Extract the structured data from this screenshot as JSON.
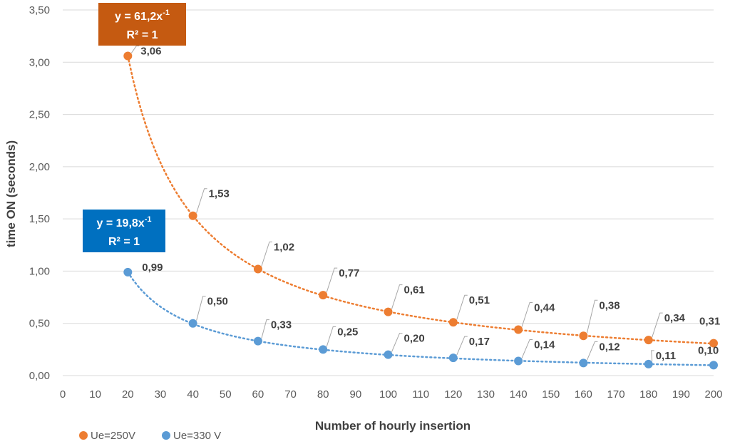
{
  "chart_data": {
    "type": "scatter",
    "xlabel": "Number of hourly insertion",
    "ylabel": "time ON (seconds)",
    "xlim": [
      0,
      200
    ],
    "ylim": [
      0,
      3.5
    ],
    "x_ticks": [
      "0",
      "10",
      "20",
      "30",
      "40",
      "50",
      "60",
      "70",
      "80",
      "90",
      "100",
      "110",
      "120",
      "130",
      "140",
      "150",
      "160",
      "170",
      "180",
      "190",
      "200"
    ],
    "y_ticks": [
      "0,00",
      "0,50",
      "1,00",
      "1,50",
      "2,00",
      "2,50",
      "3,00",
      "3,50"
    ],
    "grid": "horizontal",
    "legend_position": "bottom-left",
    "series": [
      {
        "name": "Ue=250V",
        "color": "#ED7D31",
        "x": [
          20,
          40,
          60,
          80,
          100,
          120,
          140,
          160,
          180,
          200
        ],
        "y": [
          3.06,
          1.53,
          1.02,
          0.77,
          0.61,
          0.51,
          0.44,
          0.38,
          0.34,
          0.31
        ],
        "labels": [
          "3,06",
          "1,53",
          "1,02",
          "0,77",
          "0,61",
          "0,51",
          "0,44",
          "0,38",
          "0,34",
          "0,31"
        ],
        "trendline": {
          "type": "power",
          "coef": 61.2,
          "exponent": -1
        },
        "equation": {
          "text": "y = 61,2x",
          "exp": "-1",
          "r2": "R² = 1",
          "box_color": "#C55A11"
        }
      },
      {
        "name": "Ue=330 V",
        "color": "#5B9BD5",
        "x": [
          20,
          40,
          60,
          80,
          100,
          120,
          140,
          160,
          180,
          200
        ],
        "y": [
          0.99,
          0.5,
          0.33,
          0.25,
          0.2,
          0.17,
          0.14,
          0.12,
          0.11,
          0.1
        ],
        "labels": [
          "0,99",
          "0,50",
          "0,33",
          "0,25",
          "0,20",
          "0,17",
          "0,14",
          "0,12",
          "0,11",
          "0,10"
        ],
        "trendline": {
          "type": "power",
          "coef": 19.8,
          "exponent": -1
        },
        "equation": {
          "text": "y = 19,8x",
          "exp": "-1",
          "r2": "R² = 1",
          "box_color": "#0070C0"
        }
      }
    ]
  }
}
